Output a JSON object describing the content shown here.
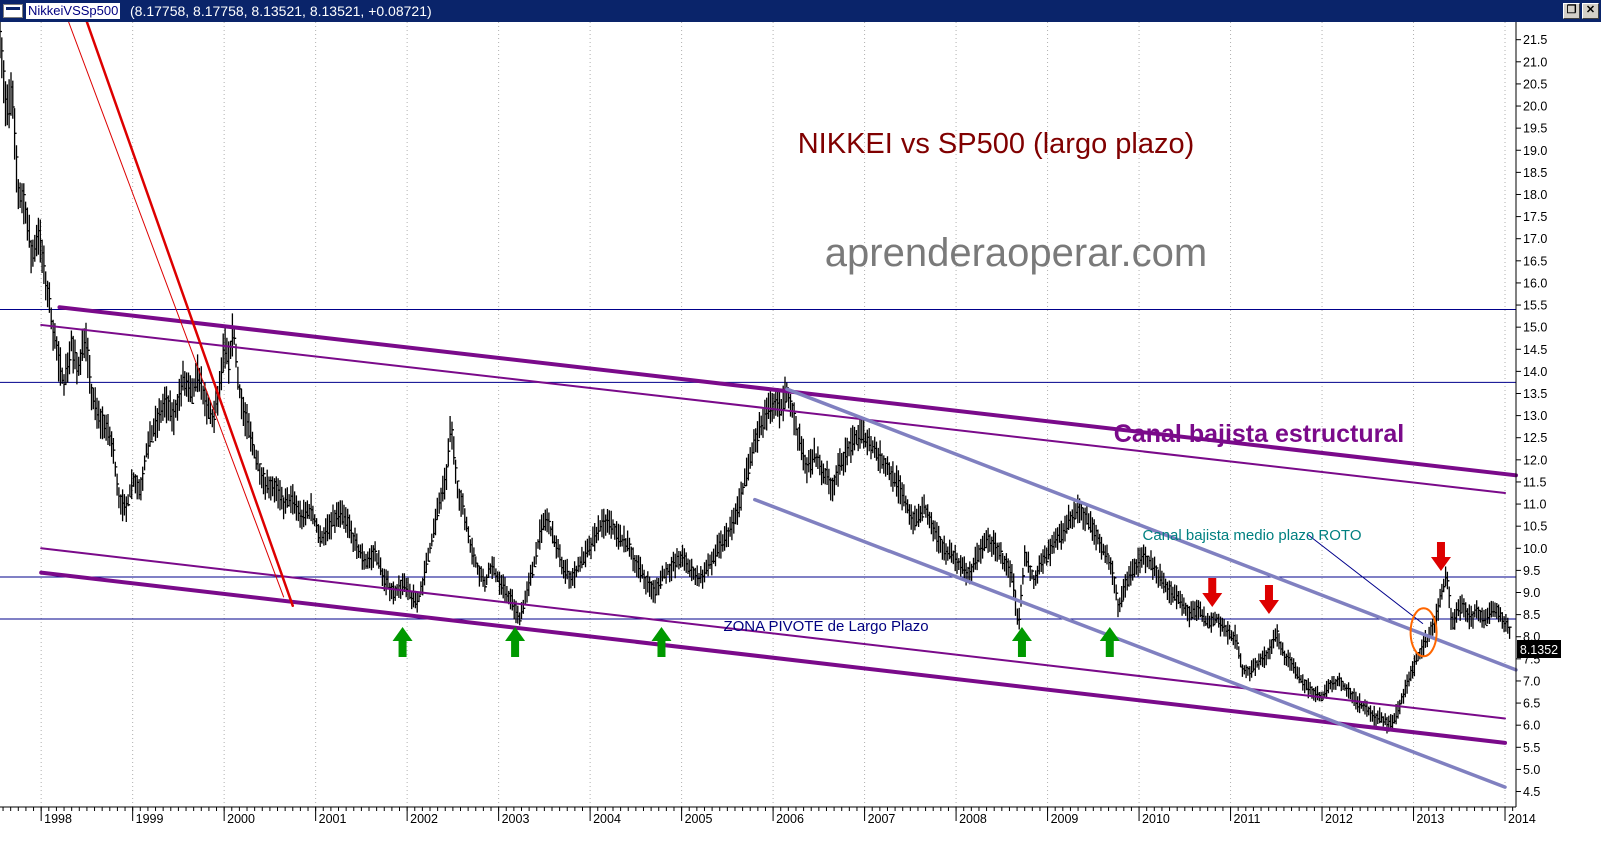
{
  "window": {
    "name": "NikkeiVSSp500",
    "values": "(8.17758, 8.17758, 8.13521, 8.13521, +0.08721)",
    "restore_glyph": "❐",
    "close_glyph": "✕"
  },
  "chart_data": {
    "type": "line",
    "title": "NIKKEI vs SP500 (largo plazo)",
    "watermark": "aprenderaoperar.com",
    "last_value_label": "8.1352",
    "x_ticks": [
      "1998",
      "1999",
      "2000",
      "2001",
      "2002",
      "2003",
      "2004",
      "2005",
      "2006",
      "2007",
      "2008",
      "2009",
      "2010",
      "2011",
      "2012",
      "2013",
      "2014"
    ],
    "x_range": [
      1997.55,
      2014.12
    ],
    "ylim": [
      4.15,
      21.9
    ],
    "y_ticks": [
      4.5,
      5.0,
      5.5,
      6.0,
      6.5,
      7.0,
      7.5,
      8.0,
      8.5,
      9.0,
      9.5,
      10.0,
      10.5,
      11.0,
      11.5,
      12.0,
      12.5,
      13.0,
      13.5,
      14.0,
      14.5,
      15.0,
      15.5,
      16.0,
      16.5,
      17.0,
      17.5,
      18.0,
      18.5,
      19.0,
      19.5,
      20.0,
      20.5,
      21.0,
      21.5
    ],
    "price_points": [
      [
        1997.55,
        21.8
      ],
      [
        1997.62,
        19.8
      ],
      [
        1997.68,
        20.3
      ],
      [
        1997.75,
        18.0
      ],
      [
        1997.82,
        17.8
      ],
      [
        1997.9,
        16.5
      ],
      [
        1997.97,
        17.2
      ],
      [
        1998.05,
        16.0
      ],
      [
        1998.1,
        15.4
      ],
      [
        1998.18,
        14.3
      ],
      [
        1998.25,
        13.8
      ],
      [
        1998.33,
        14.6
      ],
      [
        1998.4,
        14.0
      ],
      [
        1998.48,
        14.9
      ],
      [
        1998.55,
        13.5
      ],
      [
        1998.62,
        13.0
      ],
      [
        1998.7,
        12.8
      ],
      [
        1998.78,
        12.3
      ],
      [
        1998.85,
        11.2
      ],
      [
        1998.92,
        10.8
      ],
      [
        1999.0,
        11.6
      ],
      [
        1999.08,
        11.3
      ],
      [
        1999.15,
        12.2
      ],
      [
        1999.25,
        12.8
      ],
      [
        1999.35,
        13.3
      ],
      [
        1999.45,
        13.0
      ],
      [
        1999.55,
        13.8
      ],
      [
        1999.65,
        13.4
      ],
      [
        1999.72,
        14.0
      ],
      [
        1999.8,
        13.2
      ],
      [
        1999.88,
        12.9
      ],
      [
        1999.95,
        13.6
      ],
      [
        2000.0,
        14.6
      ],
      [
        2000.05,
        14.2
      ],
      [
        2000.1,
        15.0
      ],
      [
        2000.15,
        13.8
      ],
      [
        2000.2,
        13.2
      ],
      [
        2000.28,
        12.6
      ],
      [
        2000.35,
        12.0
      ],
      [
        2000.45,
        11.5
      ],
      [
        2000.55,
        11.4
      ],
      [
        2000.65,
        11.0
      ],
      [
        2000.75,
        11.1
      ],
      [
        2000.85,
        10.7
      ],
      [
        2000.95,
        10.9
      ],
      [
        2001.05,
        10.2
      ],
      [
        2001.15,
        10.5
      ],
      [
        2001.25,
        10.8
      ],
      [
        2001.35,
        10.6
      ],
      [
        2001.45,
        10.0
      ],
      [
        2001.55,
        9.7
      ],
      [
        2001.65,
        9.9
      ],
      [
        2001.75,
        9.3
      ],
      [
        2001.85,
        9.0
      ],
      [
        2001.95,
        9.2
      ],
      [
        2002.05,
        8.9
      ],
      [
        2002.12,
        8.8
      ],
      [
        2002.2,
        9.5
      ],
      [
        2002.28,
        10.3
      ],
      [
        2002.35,
        11.0
      ],
      [
        2002.42,
        11.5
      ],
      [
        2002.48,
        12.8
      ],
      [
        2002.55,
        11.4
      ],
      [
        2002.62,
        10.8
      ],
      [
        2002.7,
        10.0
      ],
      [
        2002.78,
        9.5
      ],
      [
        2002.85,
        9.2
      ],
      [
        2002.92,
        9.6
      ],
      [
        2003.0,
        9.3
      ],
      [
        2003.08,
        9.0
      ],
      [
        2003.15,
        8.8
      ],
      [
        2003.22,
        8.4
      ],
      [
        2003.3,
        8.9
      ],
      [
        2003.38,
        9.6
      ],
      [
        2003.45,
        10.3
      ],
      [
        2003.52,
        10.7
      ],
      [
        2003.6,
        10.2
      ],
      [
        2003.7,
        9.6
      ],
      [
        2003.8,
        9.3
      ],
      [
        2003.9,
        9.7
      ],
      [
        2004.0,
        10.0
      ],
      [
        2004.1,
        10.5
      ],
      [
        2004.2,
        10.6
      ],
      [
        2004.3,
        10.3
      ],
      [
        2004.4,
        10.1
      ],
      [
        2004.5,
        9.7
      ],
      [
        2004.6,
        9.3
      ],
      [
        2004.7,
        9.0
      ],
      [
        2004.8,
        9.4
      ],
      [
        2004.9,
        9.6
      ],
      [
        2005.0,
        9.8
      ],
      [
        2005.1,
        9.5
      ],
      [
        2005.2,
        9.3
      ],
      [
        2005.3,
        9.6
      ],
      [
        2005.4,
        10.0
      ],
      [
        2005.5,
        10.3
      ],
      [
        2005.6,
        10.8
      ],
      [
        2005.7,
        11.6
      ],
      [
        2005.8,
        12.4
      ],
      [
        2005.9,
        12.9
      ],
      [
        2006.0,
        13.3
      ],
      [
        2006.08,
        13.1
      ],
      [
        2006.15,
        13.6
      ],
      [
        2006.22,
        13.0
      ],
      [
        2006.3,
        12.3
      ],
      [
        2006.38,
        11.8
      ],
      [
        2006.45,
        12.1
      ],
      [
        2006.55,
        11.7
      ],
      [
        2006.65,
        11.4
      ],
      [
        2006.75,
        12.0
      ],
      [
        2006.85,
        12.3
      ],
      [
        2006.95,
        12.6
      ],
      [
        2007.05,
        12.4
      ],
      [
        2007.15,
        12.1
      ],
      [
        2007.25,
        11.8
      ],
      [
        2007.35,
        11.5
      ],
      [
        2007.45,
        11.0
      ],
      [
        2007.55,
        10.6
      ],
      [
        2007.65,
        10.9
      ],
      [
        2007.75,
        10.4
      ],
      [
        2007.85,
        10.0
      ],
      [
        2007.95,
        9.9
      ],
      [
        2008.05,
        9.6
      ],
      [
        2008.15,
        9.4
      ],
      [
        2008.25,
        9.9
      ],
      [
        2008.35,
        10.2
      ],
      [
        2008.45,
        10.0
      ],
      [
        2008.55,
        9.6
      ],
      [
        2008.62,
        9.3
      ],
      [
        2008.68,
        8.2
      ],
      [
        2008.75,
        9.8
      ],
      [
        2008.85,
        9.3
      ],
      [
        2008.95,
        9.7
      ],
      [
        2009.05,
        10.0
      ],
      [
        2009.15,
        10.3
      ],
      [
        2009.25,
        10.7
      ],
      [
        2009.35,
        10.9
      ],
      [
        2009.45,
        10.6
      ],
      [
        2009.55,
        10.2
      ],
      [
        2009.65,
        9.8
      ],
      [
        2009.72,
        9.4
      ],
      [
        2009.78,
        8.6
      ],
      [
        2009.85,
        9.2
      ],
      [
        2009.95,
        9.6
      ],
      [
        2010.05,
        9.8
      ],
      [
        2010.15,
        9.6
      ],
      [
        2010.25,
        9.3
      ],
      [
        2010.35,
        9.0
      ],
      [
        2010.45,
        8.8
      ],
      [
        2010.55,
        8.5
      ],
      [
        2010.65,
        8.6
      ],
      [
        2010.75,
        8.3
      ],
      [
        2010.85,
        8.4
      ],
      [
        2010.95,
        8.1
      ],
      [
        2011.05,
        8.0
      ],
      [
        2011.12,
        7.3
      ],
      [
        2011.2,
        7.2
      ],
      [
        2011.3,
        7.4
      ],
      [
        2011.4,
        7.6
      ],
      [
        2011.5,
        8.1
      ],
      [
        2011.58,
        7.6
      ],
      [
        2011.68,
        7.3
      ],
      [
        2011.78,
        7.0
      ],
      [
        2011.88,
        6.8
      ],
      [
        2011.98,
        6.6
      ],
      [
        2012.08,
        6.9
      ],
      [
        2012.18,
        7.0
      ],
      [
        2012.28,
        6.8
      ],
      [
        2012.38,
        6.5
      ],
      [
        2012.48,
        6.4
      ],
      [
        2012.58,
        6.2
      ],
      [
        2012.68,
        6.1
      ],
      [
        2012.76,
        6.0
      ],
      [
        2012.84,
        6.4
      ],
      [
        2012.92,
        6.9
      ],
      [
        2013.0,
        7.3
      ],
      [
        2013.08,
        7.7
      ],
      [
        2013.16,
        8.0
      ],
      [
        2013.24,
        8.4
      ],
      [
        2013.3,
        8.9
      ],
      [
        2013.36,
        9.5
      ],
      [
        2013.42,
        8.2
      ],
      [
        2013.48,
        8.6
      ],
      [
        2013.55,
        8.7
      ],
      [
        2013.62,
        8.4
      ],
      [
        2013.7,
        8.6
      ],
      [
        2013.78,
        8.3
      ],
      [
        2013.86,
        8.7
      ],
      [
        2013.94,
        8.5
      ],
      [
        2014.02,
        8.3
      ],
      [
        2014.05,
        8.13
      ]
    ]
  },
  "annotations": {
    "canal_estructural": "Canal bajista estructural",
    "canal_medio": "Canal bajista medio plazo ROTO",
    "zona_pivote": "ZONA PIVOTE de Largo Plazo"
  },
  "colors": {
    "purple": "#7a0a8a",
    "lavender": "#8080c0",
    "red": "#dd0000",
    "blue_line": "#00008b",
    "title": "#800000",
    "teal": "#008080",
    "navy": "#000080",
    "green": "#009900",
    "orange": "#ff6600"
  },
  "markers": {
    "green_up_years": [
      2001.95,
      2003.18,
      2004.78,
      2008.72,
      2009.68
    ],
    "red_down_years": [
      2010.8,
      2011.42,
      2013.3
    ],
    "circle_center": [
      2013.11,
      8.1
    ]
  },
  "horizontal_levels": [
    15.4,
    13.75,
    9.35,
    8.4
  ],
  "trend_lines": {
    "purple_thick": [
      [
        [
          1998.2,
          15.45
        ],
        [
          2014.12,
          11.65
        ]
      ],
      [
        [
          1998.0,
          9.45
        ],
        [
          2014.0,
          5.6
        ]
      ]
    ],
    "purple_thin": [
      [
        [
          1998.0,
          15.05
        ],
        [
          2014.0,
          11.25
        ]
      ],
      [
        [
          1998.0,
          10.0
        ],
        [
          2014.0,
          6.15
        ]
      ]
    ],
    "lavender": [
      [
        [
          2006.15,
          13.6
        ],
        [
          2014.12,
          7.25
        ]
      ],
      [
        [
          2005.8,
          11.1
        ],
        [
          2014.0,
          4.6
        ]
      ]
    ],
    "red_thick": [
      [
        1998.5,
        21.9
      ],
      [
        2000.75,
        8.7
      ]
    ],
    "red_thin": [
      [
        1998.3,
        21.9
      ],
      [
        2000.65,
        8.9
      ]
    ],
    "blue_pointer": [
      [
        2011.85,
        10.3
      ],
      [
        2013.1,
        8.3
      ]
    ]
  }
}
